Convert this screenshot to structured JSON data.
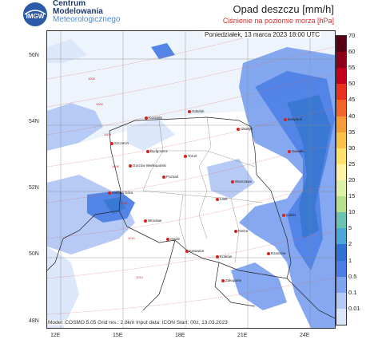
{
  "logo": {
    "mark_text": "IMGW",
    "line1": "Centrum",
    "line2": "Modelowania",
    "line3": "Meteorologicznego"
  },
  "title": {
    "main": "Opad deszczu [mm/h]",
    "sub": "Ciśnienie na poziomie morza [hPa]"
  },
  "map": {
    "date_label": "Poniedziałek, 13 marca 2023 18:00 UTC",
    "model_label": "Model: COSMO 5.05  Grid res.: 2.8km  Input data: ICON  Start: 00z, 13.03.2023",
    "lat_labels": [
      "56N",
      "54N",
      "52N",
      "50N",
      "48N"
    ],
    "lon_labels": [
      "12E",
      "15E",
      "18E",
      "21E",
      "24E"
    ],
    "cities": [
      {
        "name": "Gdańsk"
      },
      {
        "name": "Koszalin"
      },
      {
        "name": "Olsztyn"
      },
      {
        "name": "Szczecin"
      },
      {
        "name": "Bydgoszcz"
      },
      {
        "name": "Toruń"
      },
      {
        "name": "Białystok"
      },
      {
        "name": "Gorzów Wielkopolski"
      },
      {
        "name": "Poznań"
      },
      {
        "name": "Warszawa"
      },
      {
        "name": "Zielona Góra"
      },
      {
        "name": "Łódź"
      },
      {
        "name": "Wrocław"
      },
      {
        "name": "Lublin"
      },
      {
        "name": "Opole"
      },
      {
        "name": "Kielce"
      },
      {
        "name": "Katowice"
      },
      {
        "name": "Kraków"
      },
      {
        "name": "Rzeszów"
      },
      {
        "name": "Zakopane"
      },
      {
        "name": "Suwałki"
      }
    ],
    "isobars": [
      "1000",
      "1002",
      "1004",
      "1006",
      "1008",
      "1010",
      "1012"
    ]
  },
  "scale": {
    "labels": [
      "70",
      "60",
      "55",
      "50",
      "45",
      "40",
      "35",
      "30",
      "25",
      "20",
      "15",
      "10",
      "5",
      "2",
      "1",
      "0.5",
      "0.1",
      "0.01"
    ],
    "colors": [
      "#5a0014",
      "#8c0018",
      "#c4001c",
      "#e8321e",
      "#f2642a",
      "#f79a38",
      "#fbc24a",
      "#fde36a",
      "#fff3a6",
      "#ddf0a8",
      "#b4e08e",
      "#6cc3b2",
      "#4aa8d8",
      "#2f72d2",
      "#4a7ee6",
      "#7fa4f0",
      "#b4c8f6",
      "#dbe6fb"
    ]
  }
}
